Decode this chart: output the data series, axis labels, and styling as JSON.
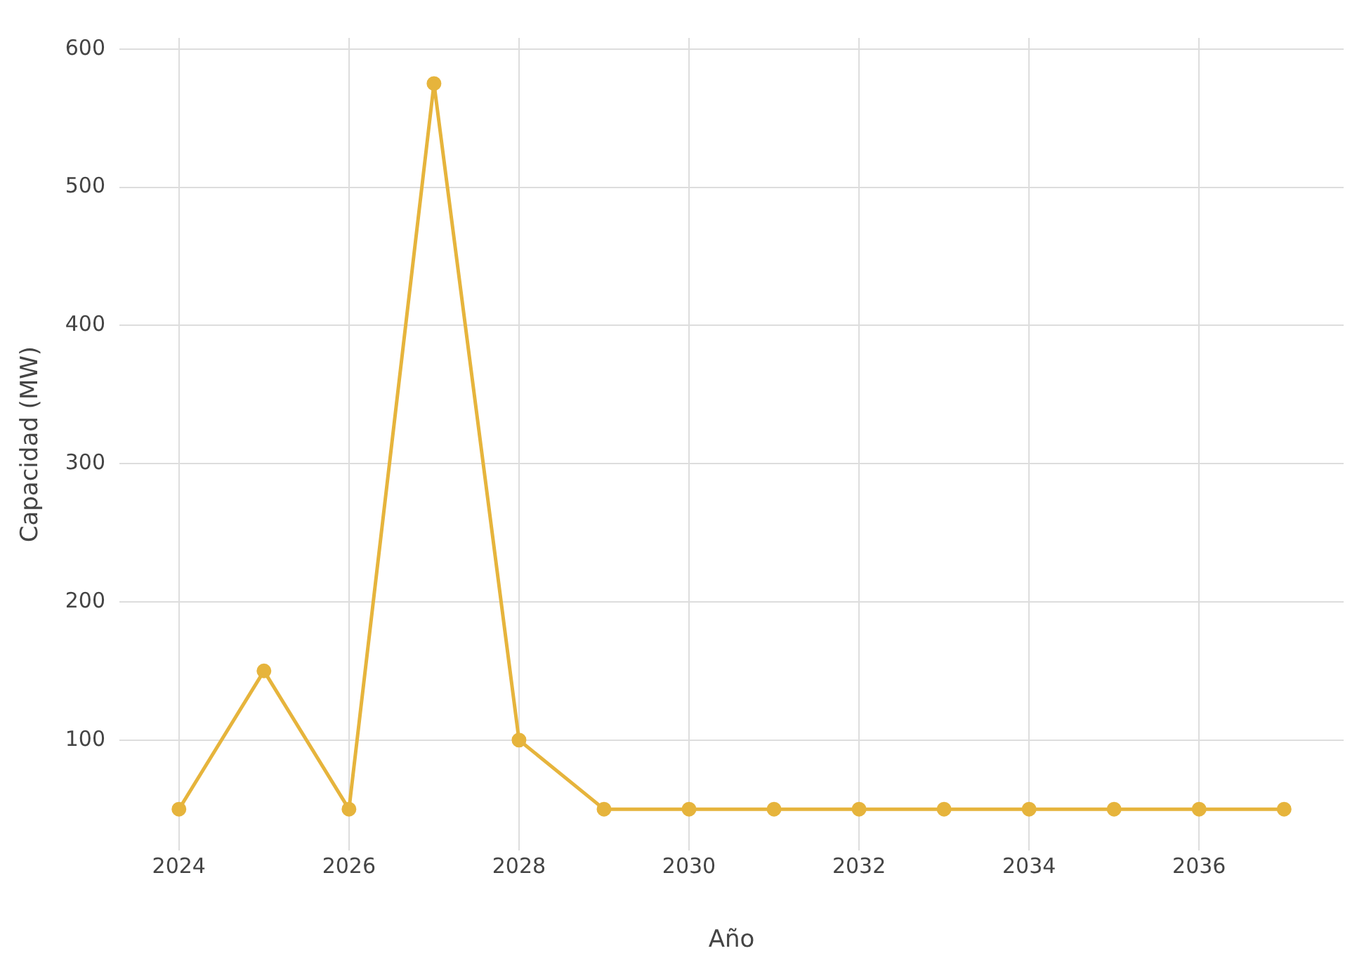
{
  "chart_data": {
    "type": "line",
    "xlabel": "Año",
    "ylabel": "Capacidad (MW)",
    "x": [
      2024,
      2025,
      2026,
      2027,
      2028,
      2029,
      2030,
      2031,
      2032,
      2033,
      2034,
      2035,
      2036,
      2037
    ],
    "series": [
      {
        "color": "#e6b43c",
        "values": [
          50,
          150,
          50,
          575,
          100,
          50,
          50,
          50,
          50,
          50,
          50,
          50,
          50,
          50
        ]
      }
    ],
    "xlim": [
      2023.3,
      2037.7
    ],
    "xticks": [
      2024,
      2026,
      2028,
      2030,
      2032,
      2034,
      2036
    ],
    "ylim": [
      20,
      608
    ],
    "yticks": [
      100,
      200,
      300,
      400,
      500,
      600
    ],
    "grid": true,
    "marker": "circle",
    "line_style": "solid",
    "legend": false
  }
}
